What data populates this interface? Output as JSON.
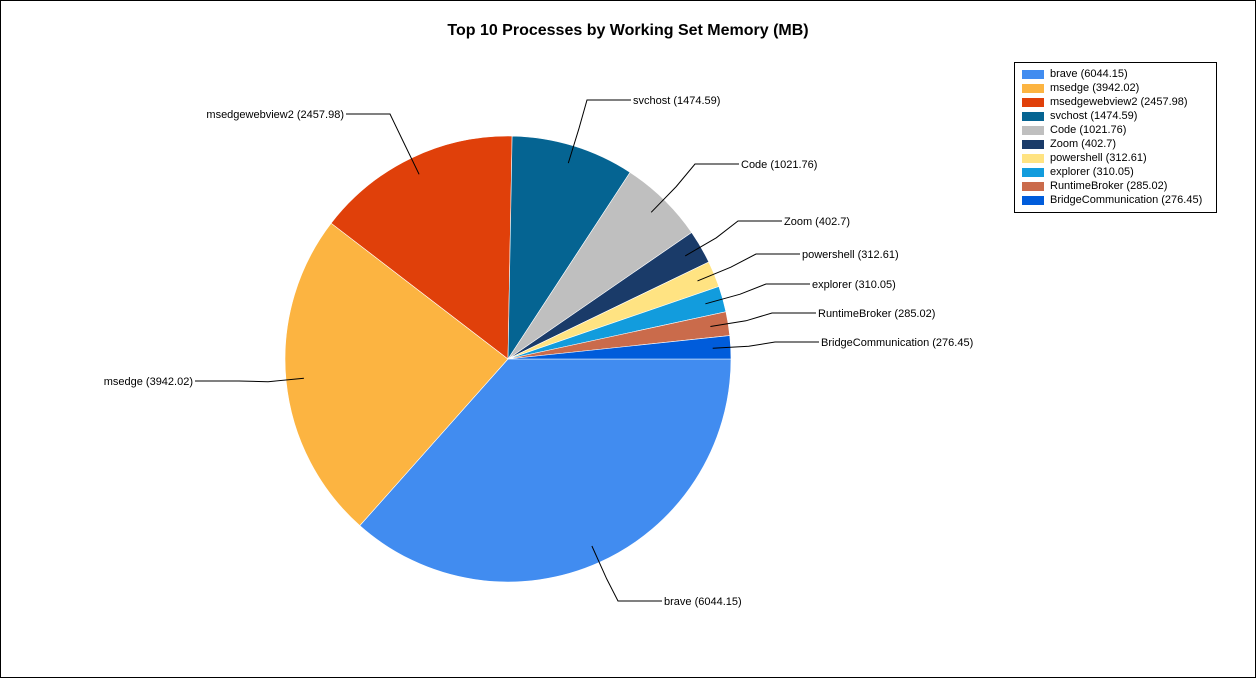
{
  "chart_data": {
    "type": "pie",
    "title": "Top 10 Processes by Working Set Memory (MB)",
    "legend_position": "top-right",
    "slices": [
      {
        "name": "brave",
        "value": 6044.15,
        "label": "brave (6044.15)",
        "color": "#418CF0"
      },
      {
        "name": "msedge",
        "value": 3942.02,
        "label": "msedge (3942.02)",
        "color": "#FCB441"
      },
      {
        "name": "msedgewebview2",
        "value": 2457.98,
        "label": "msedgewebview2 (2457.98)",
        "color": "#E0400A"
      },
      {
        "name": "svchost",
        "value": 1474.59,
        "label": "svchost (1474.59)",
        "color": "#056492"
      },
      {
        "name": "Code",
        "value": 1021.76,
        "label": "Code (1021.76)",
        "color": "#BFBFBF"
      },
      {
        "name": "Zoom",
        "value": 402.7,
        "label": "Zoom (402.7)",
        "color": "#1A3B69"
      },
      {
        "name": "powershell",
        "value": 312.61,
        "label": "powershell (312.61)",
        "color": "#FFE382"
      },
      {
        "name": "explorer",
        "value": 310.05,
        "label": "explorer (310.05)",
        "color": "#129CDD"
      },
      {
        "name": "RuntimeBroker",
        "value": 285.02,
        "label": "RuntimeBroker (285.02)",
        "color": "#CA6B4B"
      },
      {
        "name": "BridgeCommunication",
        "value": 276.45,
        "label": "BridgeCommunication (276.45)",
        "color": "#005CDB"
      }
    ]
  }
}
